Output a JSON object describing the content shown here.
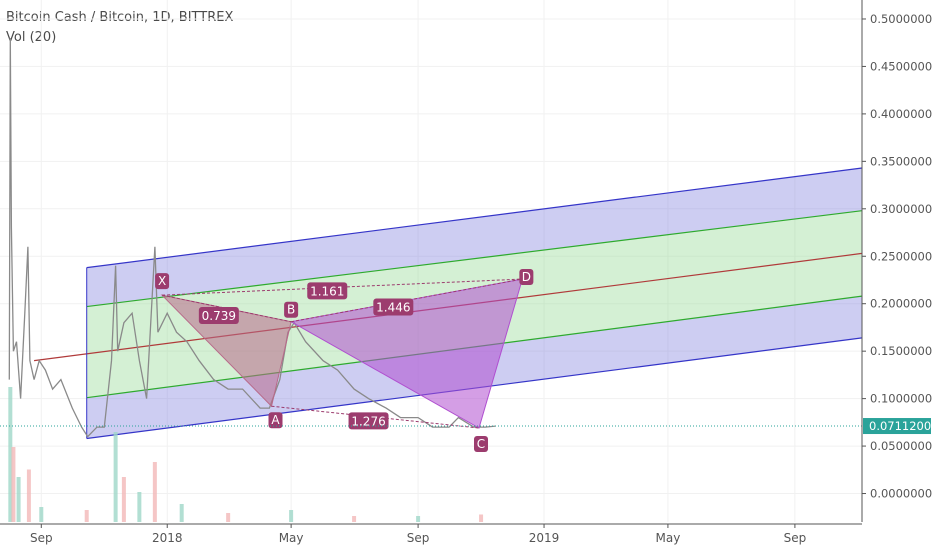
{
  "legend": {
    "title": "Bitcoin Cash / Bitcoin, 1D, BITTREX",
    "volume": "Vol (20)"
  },
  "colors": {
    "candle": "#8a8a8a",
    "volume_up": "#9fd7c8",
    "volume_down": "#f2b8b8",
    "channel_outer_fill": "#7b7bdc",
    "channel_inner_fill": "#8fd88f",
    "channel_outer_line": "#3535c8",
    "channel_inner_line": "#2eaa2e",
    "median_line": "#b03a3a",
    "pattern_xab": "#b86a8a",
    "pattern_bcd": "#b04fd0",
    "label_bg": "#9c3c6e",
    "price_tag": "#2aa39a",
    "axis_line": "#555555",
    "grid": "#f1f1f1"
  },
  "chart_data": {
    "type": "line",
    "title": "Bitcoin Cash / Bitcoin, 1D, BITTREX",
    "xlabel": "",
    "ylabel": "",
    "grid": true,
    "y_axis": {
      "position": "right",
      "ylim": [
        -0.03,
        0.52
      ],
      "ticks": [
        "0.50000000",
        "0.45000000",
        "0.40000000",
        "0.35000000",
        "0.30000000",
        "0.25000000",
        "0.20000000",
        "0.15000000",
        "0.10000000",
        "0.05000000",
        "0.00000000"
      ]
    },
    "x_axis": {
      "range": [
        "2017-07-23",
        "2019-11-05"
      ],
      "ticks": [
        {
          "label": "Sep",
          "date": "2017-09-01"
        },
        {
          "label": "2018",
          "date": "2018-01-01"
        },
        {
          "label": "May",
          "date": "2018-05-01"
        },
        {
          "label": "Sep",
          "date": "2018-09-01"
        },
        {
          "label": "2019",
          "date": "2019-01-01"
        },
        {
          "label": "May",
          "date": "2019-05-01"
        },
        {
          "label": "Sep",
          "date": "2019-09-01"
        }
      ]
    },
    "last_price": "0.07112006",
    "series": [
      {
        "points": [
          [
            "2017-08-01",
            0.12
          ],
          [
            "2017-08-02",
            0.48
          ],
          [
            "2017-08-03",
            0.28
          ],
          [
            "2017-08-05",
            0.15
          ],
          [
            "2017-08-08",
            0.16
          ],
          [
            "2017-08-12",
            0.1
          ],
          [
            "2017-08-16",
            0.19
          ],
          [
            "2017-08-19",
            0.26
          ],
          [
            "2017-08-21",
            0.14
          ],
          [
            "2017-08-25",
            0.12
          ],
          [
            "2017-08-30",
            0.14
          ],
          [
            "2017-09-05",
            0.13
          ],
          [
            "2017-09-12",
            0.11
          ],
          [
            "2017-09-20",
            0.12
          ],
          [
            "2017-10-01",
            0.09
          ],
          [
            "2017-10-10",
            0.07
          ],
          [
            "2017-10-16",
            0.06
          ],
          [
            "2017-10-25",
            0.07
          ],
          [
            "2017-11-01",
            0.07
          ],
          [
            "2017-11-08",
            0.14
          ],
          [
            "2017-11-12",
            0.24
          ],
          [
            "2017-11-14",
            0.15
          ],
          [
            "2017-11-20",
            0.18
          ],
          [
            "2017-11-28",
            0.19
          ],
          [
            "2017-12-05",
            0.14
          ],
          [
            "2017-12-12",
            0.1
          ],
          [
            "2017-12-20",
            0.26
          ],
          [
            "2017-12-23",
            0.17
          ],
          [
            "2018-01-01",
            0.19
          ],
          [
            "2018-01-10",
            0.17
          ],
          [
            "2018-01-20",
            0.16
          ],
          [
            "2018-02-01",
            0.14
          ],
          [
            "2018-02-15",
            0.12
          ],
          [
            "2018-03-01",
            0.11
          ],
          [
            "2018-03-15",
            0.11
          ],
          [
            "2018-04-01",
            0.09
          ],
          [
            "2018-04-10",
            0.09
          ],
          [
            "2018-04-20",
            0.12
          ],
          [
            "2018-04-28",
            0.17
          ],
          [
            "2018-05-04",
            0.18
          ],
          [
            "2018-05-15",
            0.16
          ],
          [
            "2018-06-01",
            0.14
          ],
          [
            "2018-06-15",
            0.13
          ],
          [
            "2018-07-01",
            0.11
          ],
          [
            "2018-07-15",
            0.1
          ],
          [
            "2018-08-01",
            0.09
          ],
          [
            "2018-08-15",
            0.08
          ],
          [
            "2018-09-01",
            0.08
          ],
          [
            "2018-09-15",
            0.07
          ],
          [
            "2018-10-01",
            0.07
          ],
          [
            "2018-10-10",
            0.08
          ],
          [
            "2018-10-25",
            0.07
          ],
          [
            "2018-11-05",
            0.07
          ],
          [
            "2018-11-15",
            0.071
          ]
        ]
      }
    ],
    "volume": {
      "dates": [
        "2017-08-02",
        "2017-08-05",
        "2017-08-10",
        "2017-08-20",
        "2017-09-01",
        "2017-10-15",
        "2017-11-12",
        "2017-11-20",
        "2017-12-05",
        "2017-12-20",
        "2018-01-15",
        "2018-03-01",
        "2018-05-01",
        "2018-07-01",
        "2018-09-01",
        "2018-11-01"
      ],
      "values": [
        0.09,
        0.05,
        0.03,
        0.035,
        0.01,
        0.008,
        0.06,
        0.03,
        0.02,
        0.04,
        0.012,
        0.006,
        0.008,
        0.004,
        0.004,
        0.005
      ]
    },
    "channel": {
      "upper_outer": [
        [
          "2017-10-15",
          0.238
        ],
        [
          "2019-11-05",
          0.343
        ]
      ],
      "upper_inner": [
        [
          "2017-10-15",
          0.197
        ],
        [
          "2019-11-05",
          0.298
        ]
      ],
      "median": [
        [
          "2017-08-25",
          0.14
        ],
        [
          "2019-11-05",
          0.253
        ]
      ],
      "lower_inner": [
        [
          "2017-10-15",
          0.101
        ],
        [
          "2019-11-05",
          0.208
        ]
      ],
      "lower_outer": [
        [
          "2017-10-15",
          0.058
        ],
        [
          "2019-11-05",
          0.164
        ]
      ]
    },
    "harmonic_pattern": {
      "points": [
        {
          "name": "X",
          "date": "2017-12-27",
          "value": 0.209
        },
        {
          "name": "A",
          "date": "2018-04-12",
          "value": 0.092
        },
        {
          "name": "B",
          "date": "2018-05-01",
          "value": 0.181
        },
        {
          "name": "C",
          "date": "2018-10-30",
          "value": 0.069
        },
        {
          "name": "D",
          "date": "2018-12-11",
          "value": 0.226
        }
      ],
      "ratios": [
        {
          "label": "0.739",
          "date": "2018-02-20",
          "value": 0.187
        },
        {
          "label": "1.161",
          "date": "2018-06-05",
          "value": 0.213
        },
        {
          "label": "1.446",
          "date": "2018-08-08",
          "value": 0.196
        },
        {
          "label": "1.276",
          "date": "2018-07-15",
          "value": 0.076
        }
      ]
    }
  }
}
